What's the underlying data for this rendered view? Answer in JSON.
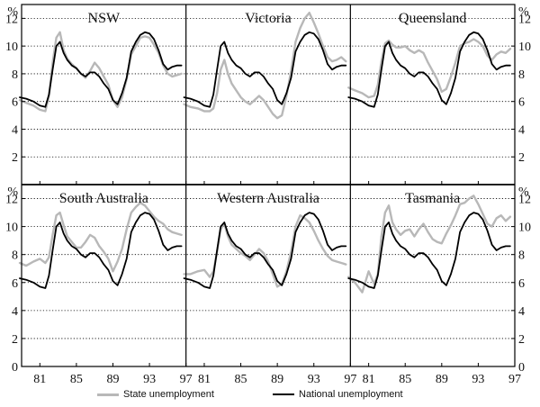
{
  "chart_data": {
    "type": "line",
    "y_unit": "%",
    "ylim": [
      0,
      13
    ],
    "yticks": [
      0,
      2,
      4,
      6,
      8,
      10,
      12
    ],
    "xlim": [
      1979,
      1997
    ],
    "xticks": [
      1981,
      1985,
      1989,
      1993,
      1997
    ],
    "xtick_labels": [
      "81",
      "85",
      "89",
      "93",
      "97"
    ],
    "grid": "horizontal dotted",
    "legend_position": "bottom",
    "colors": {
      "state": "#b8b8b8",
      "national": "#000000",
      "axes": "#000000",
      "grid": "#000000"
    },
    "series_labels": {
      "state": "State unemployment",
      "national": "National unemployment"
    },
    "national": {
      "x": [
        1978.8,
        1979.5,
        1980.3,
        1981.0,
        1981.6,
        1982.0,
        1982.4,
        1982.8,
        1983.2,
        1983.6,
        1984.0,
        1984.5,
        1985.0,
        1985.5,
        1986.0,
        1986.5,
        1987.0,
        1987.5,
        1988.0,
        1988.5,
        1989.0,
        1989.5,
        1990.0,
        1990.5,
        1991.0,
        1991.5,
        1992.0,
        1992.5,
        1993.0,
        1993.5,
        1994.0,
        1994.5,
        1995.0,
        1995.5,
        1996.0,
        1996.5
      ],
      "y": [
        6.3,
        6.2,
        6.0,
        5.7,
        5.6,
        6.5,
        8.3,
        10.0,
        10.3,
        9.5,
        9.0,
        8.6,
        8.4,
        8.0,
        7.8,
        8.1,
        8.1,
        7.8,
        7.3,
        6.9,
        6.1,
        5.8,
        6.6,
        7.7,
        9.6,
        10.3,
        10.8,
        11.0,
        10.9,
        10.5,
        9.7,
        8.7,
        8.3,
        8.5,
        8.6,
        8.6
      ]
    },
    "panels": [
      {
        "name": "NSW",
        "x": [
          1978.8,
          1979.5,
          1980.3,
          1981.0,
          1981.6,
          1982.0,
          1982.4,
          1982.8,
          1983.2,
          1983.6,
          1984.0,
          1984.5,
          1985.0,
          1985.5,
          1986.0,
          1986.5,
          1987.0,
          1987.5,
          1988.0,
          1988.5,
          1989.0,
          1989.5,
          1990.0,
          1990.5,
          1991.0,
          1991.5,
          1992.0,
          1992.5,
          1993.0,
          1993.5,
          1994.0,
          1994.5,
          1995.0,
          1995.5,
          1996.0,
          1996.5
        ],
        "y": [
          6.1,
          5.9,
          5.7,
          5.4,
          5.3,
          6.4,
          8.8,
          10.6,
          11.0,
          9.7,
          9.1,
          8.7,
          8.4,
          8.0,
          7.7,
          8.2,
          8.8,
          8.4,
          7.8,
          7.2,
          6.1,
          5.6,
          6.3,
          7.6,
          9.4,
          10.0,
          10.6,
          10.7,
          10.6,
          10.1,
          9.5,
          8.6,
          8.0,
          7.8,
          7.9,
          8.0
        ]
      },
      {
        "name": "Victoria",
        "x": [
          1978.8,
          1979.5,
          1980.3,
          1981.0,
          1981.6,
          1982.0,
          1982.4,
          1982.8,
          1983.2,
          1983.6,
          1984.0,
          1984.5,
          1985.0,
          1985.5,
          1986.0,
          1986.5,
          1987.0,
          1987.5,
          1988.0,
          1988.5,
          1989.0,
          1989.5,
          1990.0,
          1990.5,
          1991.0,
          1991.5,
          1992.0,
          1992.5,
          1993.0,
          1993.5,
          1994.0,
          1994.5,
          1995.0,
          1995.5,
          1996.0,
          1996.5
        ],
        "y": [
          5.8,
          5.6,
          5.5,
          5.3,
          5.3,
          5.5,
          6.6,
          8.3,
          9.0,
          8.0,
          7.3,
          6.8,
          6.3,
          6.0,
          5.8,
          6.1,
          6.4,
          6.1,
          5.6,
          5.1,
          4.8,
          5.0,
          6.4,
          8.2,
          10.3,
          11.3,
          12.0,
          12.4,
          11.7,
          10.9,
          10.0,
          9.2,
          8.9,
          9.0,
          9.2,
          8.9
        ]
      },
      {
        "name": "Queensland",
        "x": [
          1978.8,
          1979.5,
          1980.3,
          1981.0,
          1981.6,
          1982.0,
          1982.4,
          1982.8,
          1983.2,
          1983.6,
          1984.0,
          1984.5,
          1985.0,
          1985.5,
          1986.0,
          1986.5,
          1987.0,
          1987.5,
          1988.0,
          1988.5,
          1989.0,
          1989.5,
          1990.0,
          1990.5,
          1991.0,
          1991.5,
          1992.0,
          1992.5,
          1993.0,
          1993.5,
          1994.0,
          1994.5,
          1995.0,
          1995.5,
          1996.0,
          1996.5
        ],
        "y": [
          7.0,
          6.8,
          6.6,
          6.3,
          6.4,
          7.2,
          8.9,
          10.2,
          10.4,
          10.1,
          9.9,
          9.9,
          10.0,
          9.7,
          9.5,
          9.7,
          9.5,
          8.8,
          8.2,
          7.6,
          6.7,
          6.9,
          7.8,
          8.8,
          10.0,
          10.2,
          10.3,
          10.5,
          10.3,
          10.0,
          9.3,
          9.0,
          9.4,
          9.6,
          9.5,
          9.8
        ]
      },
      {
        "name": "South Australia",
        "x": [
          1978.8,
          1979.5,
          1980.3,
          1981.0,
          1981.6,
          1982.0,
          1982.4,
          1982.8,
          1983.2,
          1983.6,
          1984.0,
          1984.5,
          1985.0,
          1985.5,
          1986.0,
          1986.5,
          1987.0,
          1987.5,
          1988.0,
          1988.5,
          1989.0,
          1989.5,
          1990.0,
          1990.5,
          1991.0,
          1991.5,
          1992.0,
          1992.5,
          1993.0,
          1993.5,
          1994.0,
          1994.5,
          1995.0,
          1995.5,
          1996.0,
          1996.5
        ],
        "y": [
          7.4,
          7.2,
          7.5,
          7.7,
          7.4,
          7.8,
          9.4,
          10.8,
          11.0,
          10.1,
          9.3,
          8.9,
          8.5,
          8.5,
          8.9,
          9.4,
          9.2,
          8.6,
          8.2,
          7.7,
          6.8,
          7.5,
          8.4,
          9.8,
          11.0,
          11.4,
          11.7,
          11.5,
          11.1,
          10.7,
          10.4,
          10.2,
          9.8,
          9.6,
          9.5,
          9.4
        ]
      },
      {
        "name": "Western Australia",
        "x": [
          1978.8,
          1979.5,
          1980.3,
          1981.0,
          1981.6,
          1982.0,
          1982.4,
          1982.8,
          1983.2,
          1983.6,
          1984.0,
          1984.5,
          1985.0,
          1985.5,
          1986.0,
          1986.5,
          1987.0,
          1987.5,
          1988.0,
          1988.5,
          1989.0,
          1989.5,
          1990.0,
          1990.5,
          1991.0,
          1991.5,
          1992.0,
          1992.5,
          1993.0,
          1993.5,
          1994.0,
          1994.5,
          1995.0,
          1995.5,
          1996.0,
          1996.5
        ],
        "y": [
          6.6,
          6.6,
          6.8,
          6.9,
          6.4,
          6.8,
          8.2,
          9.8,
          10.2,
          9.3,
          8.7,
          8.4,
          8.1,
          7.9,
          7.6,
          8.0,
          8.4,
          8.1,
          7.5,
          6.6,
          5.7,
          5.9,
          6.8,
          8.2,
          10.0,
          10.8,
          10.6,
          10.3,
          9.7,
          9.0,
          8.4,
          7.9,
          7.6,
          7.5,
          7.4,
          7.3
        ]
      },
      {
        "name": "Tasmania",
        "x": [
          1978.8,
          1979.5,
          1980.3,
          1981.0,
          1981.6,
          1982.0,
          1982.4,
          1982.8,
          1983.2,
          1983.6,
          1984.0,
          1984.5,
          1985.0,
          1985.5,
          1986.0,
          1986.5,
          1987.0,
          1987.5,
          1988.0,
          1988.5,
          1989.0,
          1989.5,
          1990.0,
          1990.5,
          1991.0,
          1991.5,
          1992.0,
          1992.5,
          1993.0,
          1993.5,
          1994.0,
          1994.5,
          1995.0,
          1995.5,
          1996.0,
          1996.5
        ],
        "y": [
          6.4,
          6.0,
          5.3,
          6.8,
          5.9,
          6.6,
          9.3,
          11.0,
          11.5,
          10.3,
          9.8,
          9.4,
          9.7,
          9.8,
          9.3,
          9.8,
          10.2,
          9.6,
          9.1,
          8.9,
          8.8,
          9.5,
          10.1,
          10.8,
          11.6,
          11.7,
          12.0,
          12.2,
          11.6,
          10.9,
          10.2,
          10.0,
          10.6,
          10.8,
          10.4,
          10.7
        ]
      }
    ]
  }
}
